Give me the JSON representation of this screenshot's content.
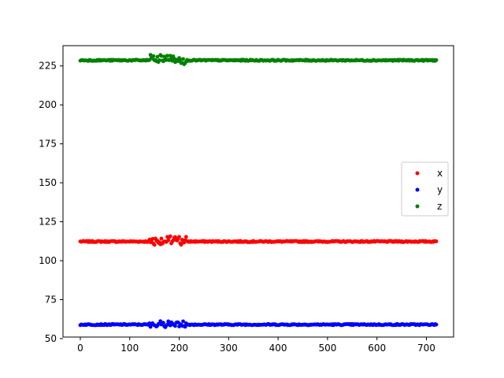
{
  "chart_data": {
    "type": "scatter",
    "title": "",
    "xlabel": "",
    "ylabel": "",
    "xlim": [
      -35,
      755
    ],
    "ylim": [
      51,
      238
    ],
    "xticks": [
      0,
      100,
      200,
      300,
      400,
      500,
      600,
      700
    ],
    "yticks": [
      50,
      75,
      100,
      125,
      150,
      175,
      200,
      225
    ],
    "grid": false,
    "legend": {
      "placement": "center-right"
    },
    "x_range": [
      0,
      720
    ],
    "series": [
      {
        "name": "x",
        "color": "#ff0000",
        "baseline": 112.3
      },
      {
        "name": "y",
        "color": "#0000ff",
        "baseline": 59.0
      },
      {
        "name": "z",
        "color": "#008000",
        "baseline": 228.6
      }
    ],
    "disturbance_x_range": [
      140,
      215
    ]
  }
}
